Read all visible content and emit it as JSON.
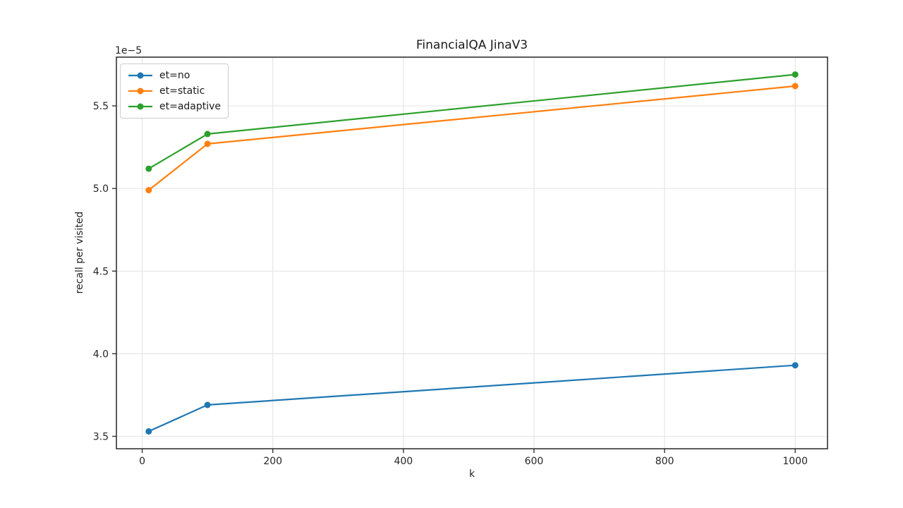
{
  "chart_data": {
    "type": "line",
    "title": "FinancialQA JinaV3",
    "xlabel": "k",
    "ylabel": "recall per visited",
    "y_axis_offset_text": "1e−5",
    "x": [
      10,
      100,
      1000
    ],
    "series": [
      {
        "name": "et=no",
        "color": "#1f77b4",
        "values": [
          3.53,
          3.69,
          3.93
        ]
      },
      {
        "name": "et=static",
        "color": "#ff7f0e",
        "values": [
          4.99,
          5.27,
          5.62
        ]
      },
      {
        "name": "et=adaptive",
        "color": "#2ca02c",
        "values": [
          5.12,
          5.33,
          5.69
        ]
      }
    ],
    "xticks": [
      0,
      200,
      400,
      600,
      800,
      1000
    ],
    "yticks": [
      3.5,
      4.0,
      4.5,
      5.0,
      5.5
    ],
    "xlim": [
      -39.5,
      1049.5
    ],
    "ylim": [
      3.425,
      5.795
    ],
    "grid": true,
    "legend": {
      "position": "upper left",
      "entries": [
        "et=no",
        "et=static",
        "et=adaptive"
      ]
    }
  },
  "style": {
    "background": "#ffffff",
    "grid_color": "#e6e6e6",
    "spine_color": "#333333",
    "tick_color": "#333333",
    "text_color": "#262626"
  }
}
